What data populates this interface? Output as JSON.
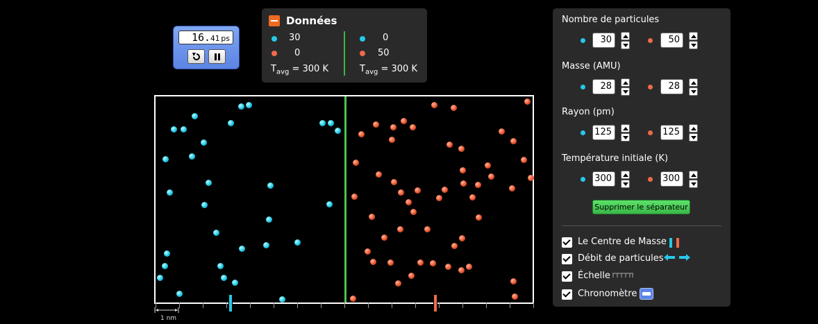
{
  "stopwatch": {
    "time_main": "16.",
    "time_frac": "41",
    "unit": "ps"
  },
  "data_panel": {
    "title": "Données",
    "left": {
      "blue_count": "30",
      "red_count": "0",
      "tavg_label": "T",
      "tavg_sub": "avg",
      "tavg_value": " = 300 K"
    },
    "right": {
      "blue_count": "0",
      "red_count": "50",
      "tavg_label": "T",
      "tavg_sub": "avg",
      "tavg_value": " = 300 K"
    }
  },
  "scale": {
    "label": "1 nm"
  },
  "controls": {
    "particles_title": "Nombre de particules",
    "particles_blue": "30",
    "particles_red": "50",
    "mass_title": "Masse (AMU)",
    "mass_blue": "28",
    "mass_red": "28",
    "radius_title": "Rayon (pm)",
    "radius_blue": "125",
    "radius_red": "125",
    "temp_title": "Température initiale (K)",
    "temp_blue": "300",
    "temp_red": "300",
    "remove_separator": "Supprimer le séparateur",
    "checkboxes": {
      "center_of_mass": "Le Centre de Masse",
      "particle_flow": "Débit de particules",
      "scale": "Échelle",
      "stopwatch": "Chronomètre"
    }
  },
  "colors": {
    "blue": "#27c9ea",
    "red": "#ef6a4c",
    "divider": "#4cc24f",
    "accent": "#5b84e4"
  }
}
